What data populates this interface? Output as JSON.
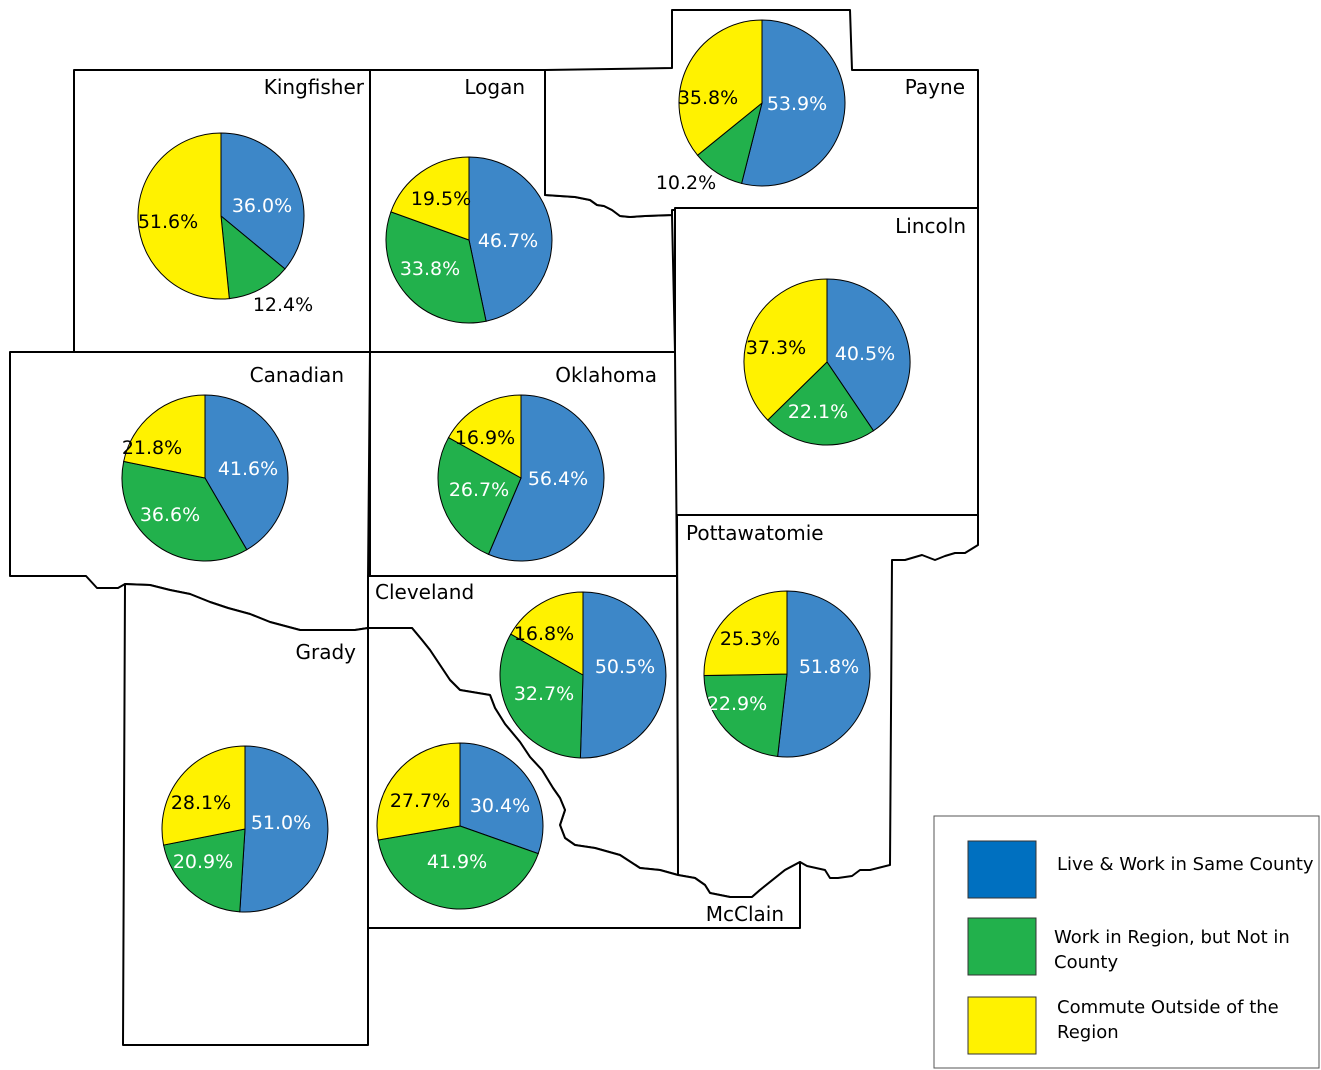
{
  "colors": {
    "live_work_same_county": "#3d87c8",
    "work_in_region": "#22b14c",
    "commute_outside": "#fff200",
    "legend_live_work_same_county": "#0070c0"
  },
  "counties": [
    {
      "id": "kingfisher",
      "name": "Kingfisher",
      "same": 36.0,
      "region": 12.4,
      "outside": 51.6,
      "labels": [
        "36.0%",
        "12.4%",
        "51.6%"
      ]
    },
    {
      "id": "logan",
      "name": "Logan",
      "same": 46.7,
      "region": 33.8,
      "outside": 19.5,
      "labels": [
        "46.7%",
        "33.8%",
        "19.5%"
      ]
    },
    {
      "id": "payne",
      "name": "Payne",
      "same": 53.9,
      "region": 10.2,
      "outside": 35.8,
      "labels": [
        "53.9%",
        "10.2%",
        "35.8%"
      ]
    },
    {
      "id": "lincoln",
      "name": "Lincoln",
      "same": 40.5,
      "region": 22.1,
      "outside": 37.3,
      "labels": [
        "40.5%",
        "22.1%",
        "37.3%"
      ]
    },
    {
      "id": "canadian",
      "name": "Canadian",
      "same": 41.6,
      "region": 36.6,
      "outside": 21.8,
      "labels": [
        "41.6%",
        "36.6%",
        "21.8%"
      ]
    },
    {
      "id": "oklahoma",
      "name": "Oklahoma",
      "same": 56.4,
      "region": 26.7,
      "outside": 16.9,
      "labels": [
        "56.4%",
        "26.7%",
        "16.9%"
      ]
    },
    {
      "id": "pottawatomie",
      "name": "Pottawatomie",
      "same": 51.8,
      "region": 22.9,
      "outside": 25.3,
      "labels": [
        "51.8%",
        "22.9%",
        "25.3%"
      ]
    },
    {
      "id": "cleveland",
      "name": "Cleveland",
      "same": 50.5,
      "region": 32.7,
      "outside": 16.8,
      "labels": [
        "50.5%",
        "32.7%",
        "16.8%"
      ]
    },
    {
      "id": "grady",
      "name": "Grady",
      "same": 51.0,
      "region": 20.9,
      "outside": 28.1,
      "labels": [
        "51.0%",
        "20.9%",
        "28.1%"
      ]
    },
    {
      "id": "mcclain",
      "name": "McClain",
      "same": 30.4,
      "region": 41.9,
      "outside": 27.7,
      "labels": [
        "30.4%",
        "41.9%",
        "27.7%"
      ]
    }
  ],
  "legend": {
    "items": [
      {
        "key": "live_work_same_county",
        "label_lines": [
          "Live & Work in Same County"
        ]
      },
      {
        "key": "work_in_region",
        "label_lines": [
          "Work in Region, but Not in",
          "County"
        ]
      },
      {
        "key": "commute_outside",
        "label_lines": [
          "Commute Outside of the",
          "Region"
        ]
      }
    ]
  }
}
